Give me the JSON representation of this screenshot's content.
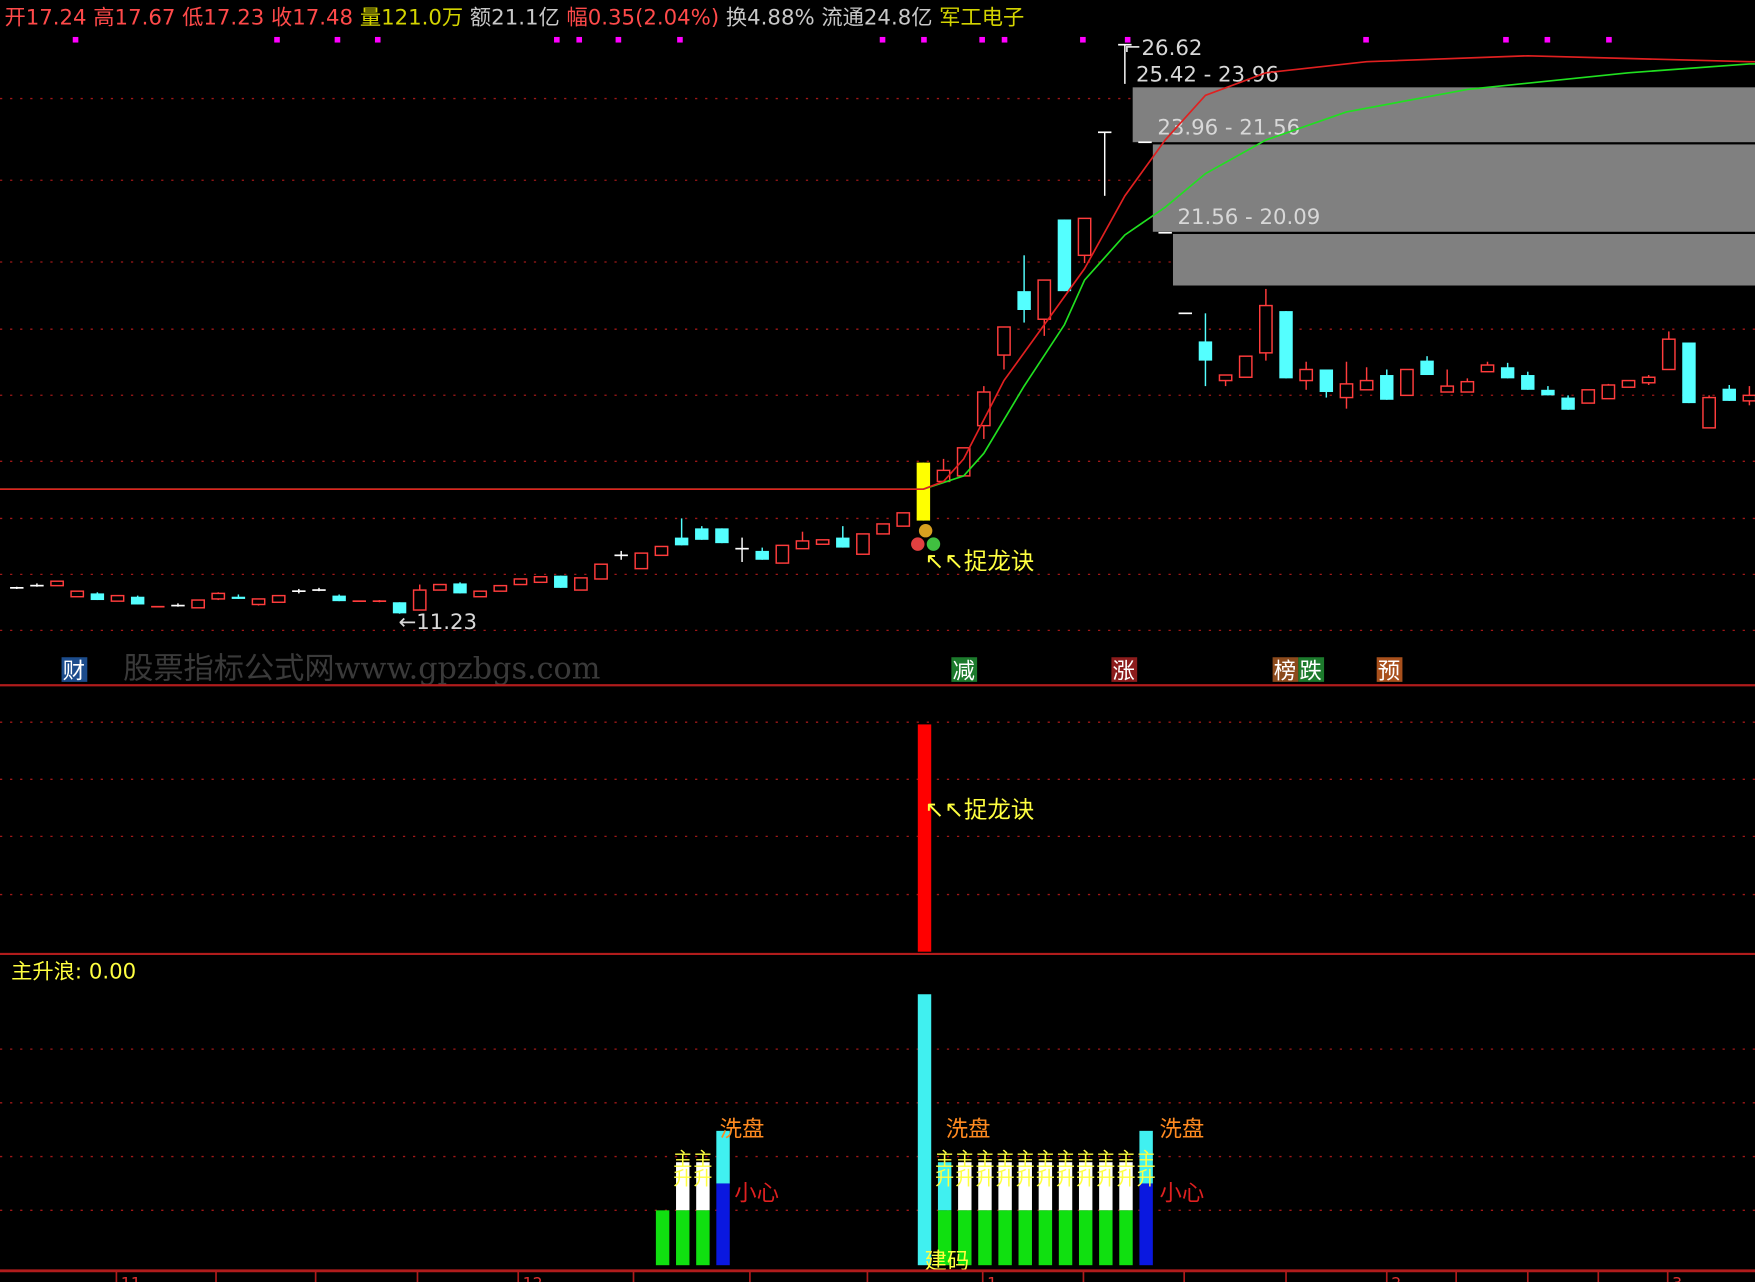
{
  "header": {
    "open": "开17.24",
    "high": "高17.67",
    "low": "低17.23",
    "close": "收17.48",
    "volume": "量121.0万",
    "amount": "额21.1亿",
    "range": "幅0.35(2.04%)",
    "turnover": "换4.88%",
    "float": "流通24.8亿",
    "sector": "军工电子"
  },
  "colors": {
    "up": "#ff3c3c",
    "down": "#54ffff",
    "ma_fast": "#e02020",
    "ma_slow": "#20e020",
    "signal": "#ffff00",
    "zone": "#808080"
  },
  "main_chart": {
    "high_label": "26.62",
    "low_label": "←11.23",
    "signal_label": "↖↖捉龙诀",
    "zones": [
      {
        "label": "25.42 - 23.96"
      },
      {
        "label": "23.96 - 21.56"
      },
      {
        "label": "21.56 - 20.09"
      }
    ],
    "signal_index": 45,
    "candles": [
      [
        11.92,
        11.95,
        11.89,
        11.92
      ],
      [
        11.98,
        12.04,
        11.95,
        11.98
      ],
      [
        11.98,
        12.1,
        11.98,
        12.1
      ],
      [
        11.68,
        11.83,
        11.68,
        11.83
      ],
      [
        11.77,
        11.8,
        11.59,
        11.59
      ],
      [
        11.56,
        11.71,
        11.56,
        11.71
      ],
      [
        11.68,
        11.71,
        11.47,
        11.47
      ],
      [
        11.41,
        11.41,
        11.41,
        11.41
      ],
      [
        11.44,
        11.5,
        11.41,
        11.44
      ],
      [
        11.38,
        11.59,
        11.38,
        11.59
      ],
      [
        11.62,
        11.8,
        11.59,
        11.77
      ],
      [
        11.68,
        11.74,
        11.62,
        11.62
      ],
      [
        11.47,
        11.62,
        11.44,
        11.62
      ],
      [
        11.53,
        11.71,
        11.53,
        11.71
      ],
      [
        11.83,
        11.89,
        11.77,
        11.83
      ],
      [
        11.86,
        11.92,
        11.83,
        11.86
      ],
      [
        11.71,
        11.74,
        11.56,
        11.56
      ],
      [
        11.56,
        11.56,
        11.56,
        11.56
      ],
      [
        11.56,
        11.59,
        11.53,
        11.56
      ],
      [
        11.53,
        11.53,
        11.22,
        11.23
      ],
      [
        11.32,
        12.01,
        11.32,
        11.86
      ],
      [
        11.86,
        12.01,
        11.86,
        12.01
      ],
      [
        12.04,
        12.07,
        11.77,
        11.77
      ],
      [
        11.68,
        11.83,
        11.68,
        11.83
      ],
      [
        11.83,
        11.98,
        11.83,
        11.98
      ],
      [
        12.01,
        12.16,
        12.01,
        12.16
      ],
      [
        12.07,
        12.22,
        12.07,
        12.22
      ],
      [
        12.25,
        12.25,
        11.92,
        11.92
      ],
      [
        11.86,
        12.19,
        11.86,
        12.19
      ],
      [
        12.16,
        12.56,
        12.16,
        12.56
      ],
      [
        12.8,
        12.92,
        12.68,
        12.8
      ],
      [
        12.44,
        12.86,
        12.44,
        12.86
      ],
      [
        12.8,
        13.04,
        12.8,
        13.04
      ],
      [
        13.28,
        13.8,
        13.07,
        13.07
      ],
      [
        13.53,
        13.59,
        13.22,
        13.22
      ],
      [
        13.53,
        13.53,
        13.13,
        13.13
      ],
      [
        12.98,
        13.28,
        12.62,
        12.98
      ],
      [
        12.92,
        13.01,
        12.68,
        12.68
      ],
      [
        12.59,
        13.07,
        12.59,
        13.07
      ],
      [
        12.98,
        13.44,
        12.98,
        13.19
      ],
      [
        13.1,
        13.22,
        13.1,
        13.22
      ],
      [
        13.28,
        13.59,
        13.01,
        13.01
      ],
      [
        12.83,
        13.38,
        12.83,
        13.38
      ],
      [
        13.38,
        13.65,
        13.38,
        13.65
      ],
      [
        13.59,
        13.95,
        13.59,
        13.95
      ],
      [
        13.74,
        15.31,
        13.74,
        15.31
      ],
      [
        14.8,
        15.41,
        14.8,
        15.1
      ],
      [
        14.95,
        15.71,
        14.95,
        15.71
      ],
      [
        16.31,
        17.38,
        15.95,
        17.22
      ],
      [
        18.22,
        18.98,
        17.83,
        18.98
      ],
      [
        19.95,
        20.92,
        19.1,
        19.44
      ],
      [
        19.19,
        20.25,
        18.74,
        20.25
      ],
      [
        21.89,
        21.89,
        19.95,
        19.95
      ],
      [
        20.92,
        21.92,
        20.71,
        21.92
      ],
      [
        24.25,
        24.25,
        22.53,
        24.25
      ],
      [
        26.62,
        26.62,
        25.56,
        26.62
      ],
      [
        23.98,
        23.98,
        23.98,
        23.98
      ],
      [
        21.53,
        21.53,
        21.53,
        21.53
      ],
      [
        19.35,
        19.35,
        19.35,
        19.35
      ],
      [
        18.59,
        19.35,
        17.38,
        18.07
      ],
      [
        17.53,
        17.68,
        17.38,
        17.68
      ],
      [
        17.62,
        18.19,
        17.62,
        18.19
      ],
      [
        18.28,
        20.01,
        18.07,
        19.56
      ],
      [
        19.41,
        19.41,
        17.59,
        17.59
      ],
      [
        17.53,
        18.04,
        17.28,
        17.83
      ],
      [
        17.83,
        17.83,
        17.07,
        17.22
      ],
      [
        17.07,
        18.04,
        16.77,
        17.44
      ],
      [
        17.28,
        17.89,
        17.28,
        17.53
      ],
      [
        17.68,
        17.83,
        17.01,
        17.01
      ],
      [
        17.13,
        17.83,
        17.13,
        17.83
      ],
      [
        18.07,
        18.19,
        17.68,
        17.68
      ],
      [
        17.22,
        17.83,
        17.22,
        17.38
      ],
      [
        17.22,
        17.59,
        17.22,
        17.5
      ],
      [
        17.77,
        18.04,
        17.77,
        17.95
      ],
      [
        17.89,
        18.01,
        17.59,
        17.59
      ],
      [
        17.68,
        17.77,
        17.28,
        17.28
      ],
      [
        17.28,
        17.38,
        17.13,
        17.13
      ],
      [
        17.07,
        17.13,
        16.74,
        16.74
      ],
      [
        16.92,
        17.28,
        16.92,
        17.28
      ],
      [
        17.04,
        17.44,
        17.04,
        17.41
      ],
      [
        17.35,
        17.53,
        17.35,
        17.53
      ],
      [
        17.47,
        17.68,
        17.41,
        17.62
      ],
      [
        17.83,
        18.86,
        17.83,
        18.65
      ],
      [
        18.56,
        18.56,
        16.92,
        16.92
      ],
      [
        16.25,
        17.13,
        16.25,
        17.07
      ],
      [
        17.31,
        17.41,
        16.98,
        16.98
      ],
      [
        16.98,
        17.38,
        16.86,
        17.13
      ]
    ],
    "ma_fast": [
      [
        0,
        14.59
      ],
      [
        45,
        14.59
      ],
      [
        46,
        14.8
      ],
      [
        47,
        15.41
      ],
      [
        49,
        17.53
      ],
      [
        51,
        19.04
      ],
      [
        53,
        20.56
      ],
      [
        55,
        22.53
      ],
      [
        57,
        24.04
      ],
      [
        59,
        25.25
      ],
      [
        62,
        25.86
      ],
      [
        67,
        26.16
      ],
      [
        75,
        26.32
      ],
      [
        86,
        26.16
      ]
    ],
    "ma_slow": [
      [
        0,
        14.59
      ],
      [
        45,
        14.59
      ],
      [
        47,
        14.95
      ],
      [
        48,
        15.56
      ],
      [
        50,
        17.38
      ],
      [
        52,
        19.04
      ],
      [
        53,
        20.25
      ],
      [
        55,
        21.47
      ],
      [
        57,
        22.22
      ],
      [
        59,
        23.13
      ],
      [
        62,
        24.04
      ],
      [
        66,
        24.8
      ],
      [
        72,
        25.41
      ],
      [
        80,
        25.86
      ],
      [
        86,
        26.1
      ]
    ]
  },
  "event_tags": [
    {
      "text": "财",
      "color": "#1c4c8c"
    },
    {
      "text": "减",
      "color": "#1c7a2c"
    },
    {
      "text": "涨",
      "color": "#8c1c1c"
    },
    {
      "text": "榜",
      "color": "#8c4a1c"
    },
    {
      "text": "跌",
      "color": "#1c7a2c"
    },
    {
      "text": "预",
      "color": "#a8501c"
    }
  ],
  "watermark": "股票指标公式网www.gpzbgs.com",
  "middle_panel": {
    "signal_label": "↖↖捉龙诀"
  },
  "bottom_panel": {
    "title": "主升浪: 0.00",
    "labels": {
      "wash": "洗盘",
      "main_rise": "主升",
      "caution": "小心",
      "build": "建码"
    }
  },
  "x_axis": {
    "labels": [
      "11",
      "12",
      "1",
      "2",
      "3"
    ]
  }
}
